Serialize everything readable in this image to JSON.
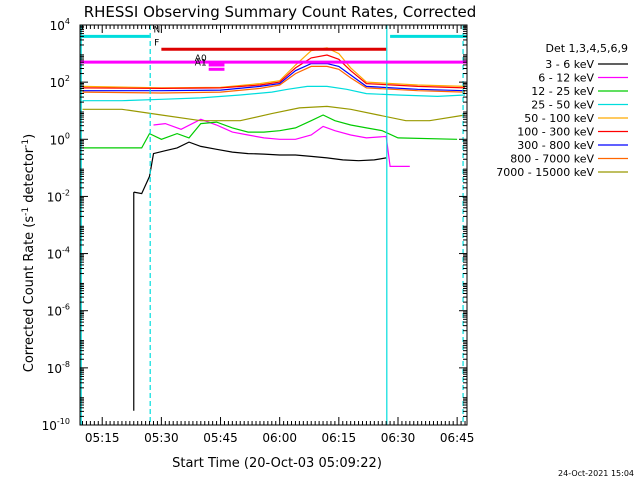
{
  "chart_data": {
    "type": "line",
    "title": "RHESSI Observing Summary Count Rates, Corrected",
    "ylabel_main": "Corrected Count Rate (s",
    "ylabel_exp": "-1",
    "ylabel_tail": " detector",
    "ylabel_tail_exp": "-1",
    "ylabel_close": ")",
    "xlabel": "Start Time (20-Oct-03 05:09:22)",
    "timestamp": "24-Oct-2021 15:04",
    "x_unit": "minutes after 05:09:22",
    "xlim": [
      "05:09:22",
      "06:47:30"
    ],
    "x_ticks": [
      "05:15",
      "05:30",
      "05:45",
      "06:00",
      "06:15",
      "06:30",
      "06:45"
    ],
    "y_scale": "log",
    "ylim": [
      1e-10,
      10000.0
    ],
    "y_ticks": [
      "10-10",
      "10-8",
      "10-6",
      "10-4",
      "10-2",
      "100",
      "102",
      "104"
    ],
    "legend_title": "Det 1,3,4,5,6,9",
    "legend_position": "right",
    "series": [
      {
        "name": "3 - 6 keV",
        "color": "#000000",
        "points": [
          [
            "05:23",
            -1.85
          ],
          [
            "05:25",
            -1.9
          ],
          [
            "05:27",
            -1.3
          ],
          [
            "05:28",
            -0.5
          ],
          [
            "05:31",
            -0.4
          ],
          [
            "05:34",
            -0.3
          ],
          [
            "05:37",
            -0.1
          ],
          [
            "05:40",
            -0.25
          ],
          [
            "05:44",
            -0.35
          ],
          [
            "05:48",
            -0.45
          ],
          [
            "05:52",
            -0.5
          ],
          [
            "05:56",
            -0.52
          ],
          [
            "06:00",
            -0.55
          ],
          [
            "06:04",
            -0.55
          ],
          [
            "06:08",
            -0.6
          ],
          [
            "06:12",
            -0.65
          ],
          [
            "06:16",
            -0.72
          ],
          [
            "06:20",
            -0.75
          ],
          [
            "06:24",
            -0.72
          ],
          [
            "06:27",
            -0.65
          ]
        ]
      },
      {
        "name": "6 - 12 keV",
        "color": "#ff00ff",
        "points": [
          [
            "05:28",
            0.5
          ],
          [
            "05:31",
            0.55
          ],
          [
            "05:35",
            0.35
          ],
          [
            "05:40",
            0.7
          ],
          [
            "05:44",
            0.5
          ],
          [
            "05:48",
            0.25
          ],
          [
            "05:52",
            0.15
          ],
          [
            "05:56",
            0.05
          ],
          [
            "06:00",
            0.0
          ],
          [
            "06:04",
            0.0
          ],
          [
            "06:08",
            0.15
          ],
          [
            "06:11",
            0.45
          ],
          [
            "06:14",
            0.3
          ],
          [
            "06:18",
            0.15
          ],
          [
            "06:22",
            0.05
          ],
          [
            "06:27",
            0.1
          ],
          [
            "06:28",
            -0.95
          ],
          [
            "06:33",
            -0.95
          ]
        ]
      },
      {
        "name": "12 - 25 keV",
        "color": "#00cc00",
        "points": [
          [
            "05:10",
            -0.3
          ],
          [
            "05:25",
            -0.3
          ],
          [
            "05:27",
            0.2
          ],
          [
            "05:30",
            0.0
          ],
          [
            "05:34",
            0.2
          ],
          [
            "05:37",
            0.05
          ],
          [
            "05:40",
            0.55
          ],
          [
            "05:44",
            0.6
          ],
          [
            "05:48",
            0.4
          ],
          [
            "05:52",
            0.25
          ],
          [
            "05:56",
            0.25
          ],
          [
            "06:00",
            0.3
          ],
          [
            "06:04",
            0.4
          ],
          [
            "06:08",
            0.65
          ],
          [
            "06:11",
            0.85
          ],
          [
            "06:14",
            0.65
          ],
          [
            "06:18",
            0.5
          ],
          [
            "06:22",
            0.4
          ],
          [
            "06:26",
            0.3
          ],
          [
            "06:30",
            0.05
          ],
          [
            "06:45",
            0.0
          ]
        ]
      },
      {
        "name": "25 - 50 keV",
        "color": "#00dddd",
        "points": [
          [
            "05:10",
            1.35
          ],
          [
            "05:20",
            1.35
          ],
          [
            "05:30",
            1.4
          ],
          [
            "05:40",
            1.45
          ],
          [
            "05:50",
            1.55
          ],
          [
            "05:58",
            1.65
          ],
          [
            "06:02",
            1.75
          ],
          [
            "06:07",
            1.85
          ],
          [
            "06:12",
            1.85
          ],
          [
            "06:17",
            1.75
          ],
          [
            "06:22",
            1.6
          ],
          [
            "06:30",
            1.55
          ],
          [
            "06:40",
            1.5
          ],
          [
            "06:47",
            1.55
          ]
        ]
      },
      {
        "name": "50 - 100 keV",
        "color": "#ffaa00",
        "points": [
          [
            "05:10",
            1.85
          ],
          [
            "05:30",
            1.8
          ],
          [
            "05:45",
            1.82
          ],
          [
            "05:55",
            1.95
          ],
          [
            "06:00",
            2.05
          ],
          [
            "06:04",
            2.6
          ],
          [
            "06:08",
            3.1
          ],
          [
            "06:12",
            3.2
          ],
          [
            "06:15",
            3.0
          ],
          [
            "06:18",
            2.5
          ],
          [
            "06:22",
            2.0
          ],
          [
            "06:35",
            1.9
          ],
          [
            "06:47",
            1.85
          ]
        ]
      },
      {
        "name": "100 - 300 keV",
        "color": "#ff0000",
        "points": [
          [
            "05:10",
            1.8
          ],
          [
            "05:30",
            1.78
          ],
          [
            "05:45",
            1.8
          ],
          [
            "05:55",
            1.9
          ],
          [
            "06:00",
            2.0
          ],
          [
            "06:04",
            2.5
          ],
          [
            "06:08",
            2.85
          ],
          [
            "06:12",
            2.95
          ],
          [
            "06:15",
            2.8
          ],
          [
            "06:18",
            2.4
          ],
          [
            "06:22",
            1.95
          ],
          [
            "06:35",
            1.85
          ],
          [
            "06:47",
            1.8
          ]
        ]
      },
      {
        "name": "300 - 800 keV",
        "color": "#0000ff",
        "points": [
          [
            "05:10",
            1.7
          ],
          [
            "05:30",
            1.7
          ],
          [
            "05:45",
            1.72
          ],
          [
            "05:55",
            1.85
          ],
          [
            "06:00",
            1.95
          ],
          [
            "06:04",
            2.4
          ],
          [
            "06:08",
            2.65
          ],
          [
            "06:12",
            2.65
          ],
          [
            "06:15",
            2.55
          ],
          [
            "06:18",
            2.25
          ],
          [
            "06:22",
            1.85
          ],
          [
            "06:35",
            1.75
          ],
          [
            "06:47",
            1.7
          ]
        ]
      },
      {
        "name": "800 - 7000 keV",
        "color": "#ff6600",
        "points": [
          [
            "05:10",
            1.65
          ],
          [
            "05:30",
            1.62
          ],
          [
            "05:45",
            1.65
          ],
          [
            "05:55",
            1.78
          ],
          [
            "06:00",
            1.9
          ],
          [
            "06:04",
            2.3
          ],
          [
            "06:08",
            2.55
          ],
          [
            "06:12",
            2.55
          ],
          [
            "06:15",
            2.45
          ],
          [
            "06:18",
            2.15
          ],
          [
            "06:22",
            1.8
          ],
          [
            "06:35",
            1.7
          ],
          [
            "06:47",
            1.65
          ]
        ]
      },
      {
        "name": "7000 - 15000 keV",
        "color": "#999900",
        "points": [
          [
            "05:10",
            1.05
          ],
          [
            "05:20",
            1.05
          ],
          [
            "05:30",
            0.85
          ],
          [
            "05:40",
            0.65
          ],
          [
            "05:50",
            0.65
          ],
          [
            "05:58",
            0.9
          ],
          [
            "06:05",
            1.1
          ],
          [
            "06:12",
            1.15
          ],
          [
            "06:18",
            1.05
          ],
          [
            "06:25",
            0.85
          ],
          [
            "06:32",
            0.65
          ],
          [
            "06:38",
            0.65
          ],
          [
            "06:47",
            0.85
          ]
        ]
      }
    ],
    "marker_bars": [
      {
        "label": "N",
        "color": "#00dddd",
        "y": 3.6,
        "segments": [
          [
            "05:09:22",
            "05:27"
          ],
          [
            "06:28",
            "06:47:30"
          ]
        ]
      },
      {
        "label": "F",
        "color": "#dd0000",
        "y": 3.15,
        "segments": [
          [
            "05:30",
            "06:27"
          ]
        ]
      },
      {
        "label": "",
        "color": "#ff00ff",
        "y": 2.7,
        "segments": [
          [
            "05:09:22",
            "06:47:30"
          ]
        ]
      },
      {
        "label": "A0",
        "color": "#ff00ff",
        "y": 2.6,
        "segments": [
          [
            "05:42",
            "05:46"
          ]
        ]
      },
      {
        "label": "A1",
        "color": "#ff00ff",
        "y": 2.45,
        "segments": [
          [
            "05:42",
            "05:46"
          ]
        ]
      }
    ],
    "vertical_lines": [
      {
        "time": "05:09:40",
        "color": "#00dddd",
        "style": "solid"
      },
      {
        "time": "05:27:10",
        "color": "#00dddd",
        "style": "dashed"
      },
      {
        "time": "06:27:10",
        "color": "#00dddd",
        "style": "solid"
      },
      {
        "time": "06:46:30",
        "color": "#00dddd",
        "style": "dashed"
      }
    ]
  }
}
